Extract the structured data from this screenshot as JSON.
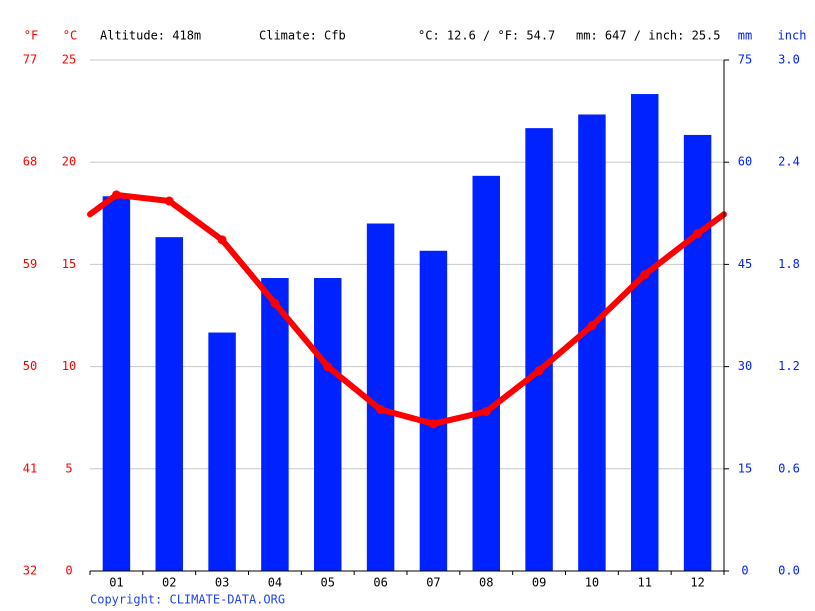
{
  "chart_data": {
    "type": "bar",
    "annotations": [
      "Altitude: 418m",
      "Climate: Cfb",
      "°C: 12.6 / °F: 54.7",
      "mm: 647 / inch: 25.5"
    ],
    "ylabel": "°C",
    "ylabel_f": "°F",
    "y2label": "mm",
    "y2label_inch": "inch",
    "source": "Copyright: CLIMATE-DATA.ORG",
    "categories": [
      "01",
      "02",
      "03",
      "04",
      "05",
      "06",
      "07",
      "08",
      "09",
      "10",
      "11",
      "12"
    ],
    "series": [
      {
        "type": "bar",
        "axis": "y2",
        "color": "#0022ff",
        "values": [
          55,
          49,
          35,
          43,
          43,
          51,
          47,
          58,
          65,
          67,
          70,
          64
        ]
      },
      {
        "type": "line",
        "color": "#ff0000",
        "values": [
          18.4,
          18.1,
          16.2,
          13.1,
          10.0,
          7.9,
          7.2,
          7.8,
          9.8,
          12.0,
          14.5,
          16.5
        ]
      }
    ],
    "ylim": [
      0,
      25
    ],
    "yticks": [
      0,
      5,
      10,
      15,
      20,
      25
    ],
    "ylim_f": [
      32,
      77
    ],
    "yticks_f": [
      32,
      41,
      50,
      59,
      68,
      77
    ],
    "y2lim": [
      0,
      75
    ],
    "y2ticks": [
      0,
      15,
      30,
      45,
      60,
      75
    ],
    "y2lim_inch": [
      0,
      3
    ],
    "y2ticks_inch": [
      {
        "value": 0,
        "label": "0.0"
      },
      0.6,
      1.2,
      1.8,
      2.4,
      {
        "value": 3,
        "label": "3.0"
      }
    ],
    "grid": true,
    "left_color": "#ff0000",
    "right_color": "#0022ff"
  }
}
